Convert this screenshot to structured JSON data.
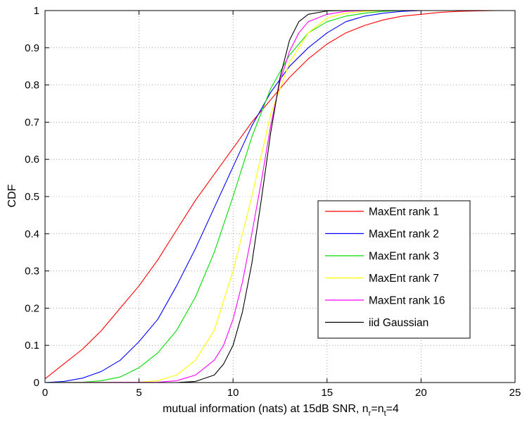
{
  "chart_data": {
    "type": "line",
    "title": "",
    "xlabel_main": "mutual information (nats) at 15dB SNR, n",
    "xlabel_sub_r": "r",
    "xlabel_eq": "=n",
    "xlabel_sub_t": "t",
    "xlabel_tail": "=4",
    "ylabel": "CDF",
    "xlim": [
      0,
      25
    ],
    "ylim": [
      0,
      1
    ],
    "xticks": [
      0,
      5,
      10,
      15,
      20,
      25
    ],
    "yticks": [
      0,
      0.1,
      0.2,
      0.3,
      0.4,
      0.5,
      0.6,
      0.7,
      0.8,
      0.9,
      1
    ],
    "xtick_labels": [
      "0",
      "5",
      "10",
      "15",
      "20",
      "25"
    ],
    "ytick_labels": [
      "0",
      "0.1",
      "0.2",
      "0.3",
      "0.4",
      "0.5",
      "0.6",
      "0.7",
      "0.8",
      "0.9",
      "1"
    ],
    "grid": true,
    "legend_position": "bottom-right",
    "series": [
      {
        "name": "MaxEnt rank 1",
        "color": "#ff0000",
        "x": [
          0,
          1,
          2,
          3,
          4,
          5,
          6,
          7,
          8,
          9,
          10,
          11,
          12,
          13,
          14,
          15,
          16,
          17,
          18,
          19,
          20,
          21,
          22,
          23,
          24
        ],
        "y": [
          0.01,
          0.05,
          0.09,
          0.14,
          0.2,
          0.26,
          0.33,
          0.41,
          0.49,
          0.56,
          0.63,
          0.7,
          0.76,
          0.82,
          0.87,
          0.91,
          0.94,
          0.96,
          0.975,
          0.985,
          0.99,
          0.995,
          0.998,
          0.999,
          1.0
        ]
      },
      {
        "name": "MaxEnt rank 2",
        "color": "#0000ff",
        "x": [
          0,
          1,
          2,
          3,
          4,
          5,
          6,
          7,
          8,
          9,
          10,
          11,
          12,
          13,
          14,
          15,
          16,
          17,
          18,
          19,
          20
        ],
        "y": [
          0,
          0.003,
          0.012,
          0.03,
          0.06,
          0.11,
          0.17,
          0.26,
          0.36,
          0.47,
          0.58,
          0.69,
          0.78,
          0.85,
          0.9,
          0.94,
          0.97,
          0.985,
          0.993,
          0.998,
          1.0
        ]
      },
      {
        "name": "MaxEnt rank 3",
        "color": "#00dd00",
        "x": [
          0,
          2,
          3,
          4,
          5,
          6,
          7,
          8,
          9,
          10,
          11,
          12,
          13,
          14,
          15,
          16,
          17,
          18,
          19
        ],
        "y": [
          0,
          0.001,
          0.005,
          0.015,
          0.04,
          0.08,
          0.14,
          0.23,
          0.35,
          0.5,
          0.66,
          0.79,
          0.88,
          0.94,
          0.97,
          0.985,
          0.993,
          0.998,
          1.0
        ]
      },
      {
        "name": "MaxEnt rank 7",
        "color": "#ffff00",
        "x": [
          0,
          5,
          6,
          7,
          8,
          9,
          10,
          11,
          12,
          13,
          14,
          15,
          16,
          17,
          18
        ],
        "y": [
          0,
          0.001,
          0.005,
          0.02,
          0.06,
          0.14,
          0.3,
          0.5,
          0.72,
          0.86,
          0.94,
          0.98,
          0.993,
          0.998,
          1.0
        ]
      },
      {
        "name": "MaxEnt rank 16",
        "color": "#ff00ff",
        "x": [
          0,
          6,
          7,
          8,
          9,
          9.5,
          10,
          10.5,
          11,
          11.5,
          12,
          12.5,
          13,
          13.5,
          14,
          15,
          16,
          17
        ],
        "y": [
          0,
          0.001,
          0.005,
          0.02,
          0.06,
          0.1,
          0.17,
          0.27,
          0.4,
          0.54,
          0.69,
          0.81,
          0.89,
          0.94,
          0.97,
          0.99,
          0.998,
          1.0
        ]
      },
      {
        "name": "iid Gaussian",
        "color": "#000000",
        "x": [
          0,
          7,
          8,
          9,
          9.5,
          10,
          10.5,
          11,
          11.5,
          12,
          12.5,
          13,
          13.5,
          14,
          15,
          16
        ],
        "y": [
          0,
          0.0,
          0.003,
          0.02,
          0.05,
          0.1,
          0.19,
          0.32,
          0.49,
          0.67,
          0.82,
          0.92,
          0.97,
          0.99,
          0.999,
          1.0
        ]
      }
    ]
  }
}
